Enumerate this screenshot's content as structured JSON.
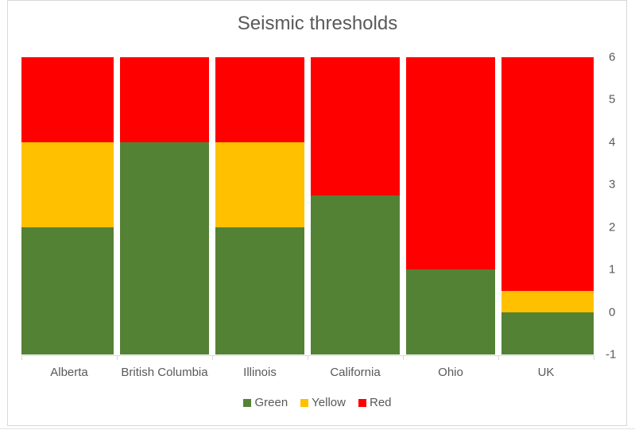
{
  "chart_data": {
    "type": "bar",
    "stacked": true,
    "title": "Seismic thresholds",
    "xlabel": "",
    "ylabel": "",
    "ylim": [
      -1,
      6
    ],
    "yaxis_position": "right",
    "yticks": [
      "6",
      "5",
      "4",
      "3",
      "2",
      "1",
      "0",
      "-1"
    ],
    "categories": [
      "Alberta",
      "British Columbia",
      "Illinois",
      "California",
      "Ohio",
      "UK"
    ],
    "baseline": -1,
    "series": [
      {
        "name": "Green",
        "color": "#548235",
        "values": [
          3,
          5,
          3,
          3.75,
          2,
          1
        ]
      },
      {
        "name": "Yellow",
        "color": "#FFC000",
        "values": [
          2,
          0,
          2,
          0,
          0,
          0.5
        ]
      },
      {
        "name": "Red",
        "color": "#FF0000",
        "values": [
          2,
          2,
          2,
          3.25,
          5,
          5.5
        ]
      }
    ],
    "segment_tops": {
      "Green": [
        2,
        4,
        2,
        2.75,
        1,
        0
      ],
      "Yellow": [
        4,
        4,
        4,
        2.75,
        1,
        0.5
      ],
      "Red": [
        6,
        6,
        6,
        6,
        6,
        6
      ]
    },
    "legend_position": "bottom",
    "grid": false
  },
  "legend": [
    {
      "label": "Green",
      "color": "#548235"
    },
    {
      "label": "Yellow",
      "color": "#FFC000"
    },
    {
      "label": "Red",
      "color": "#FF0000"
    }
  ]
}
